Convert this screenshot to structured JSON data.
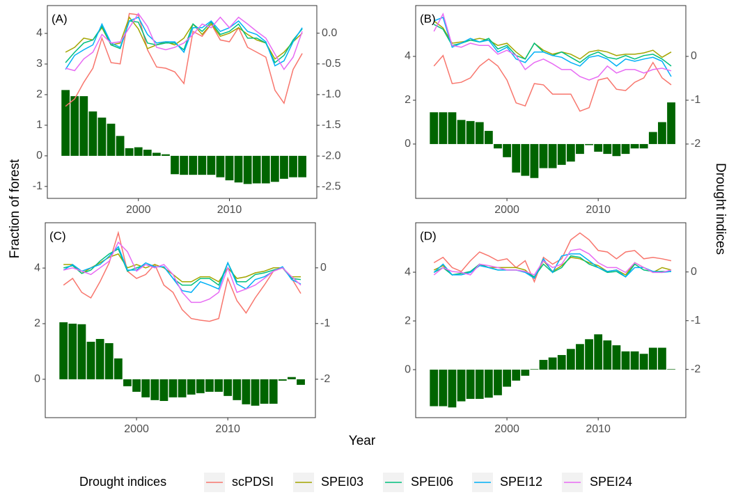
{
  "xlabel": "Year",
  "ylabel": "Fraction of forest",
  "y2label": "Drought indices",
  "legend": {
    "title": "Drought indices",
    "position": "bottom",
    "entries": [
      {
        "name": "scPDSI",
        "color": "#F8766D"
      },
      {
        "name": "SPEI03",
        "color": "#A3A500"
      },
      {
        "name": "SPEI06",
        "color": "#00BF7D"
      },
      {
        "name": "SPEI12",
        "color": "#00B0F6"
      },
      {
        "name": "SPEI24",
        "color": "#E76BF3"
      }
    ]
  },
  "chart_data": [
    {
      "type": "combo",
      "label": "(A)",
      "x": [
        1992,
        1993,
        1994,
        1995,
        1996,
        1997,
        1998,
        1999,
        2000,
        2001,
        2002,
        2003,
        2004,
        2005,
        2006,
        2007,
        2008,
        2009,
        2010,
        2011,
        2012,
        2013,
        2014,
        2015,
        2016,
        2017,
        2018
      ],
      "values": [
        2.15,
        1.95,
        1.95,
        1.45,
        1.25,
        1.05,
        0.65,
        0.25,
        0.28,
        0.2,
        0.1,
        0.05,
        -0.6,
        -0.62,
        -0.62,
        -0.62,
        -0.62,
        -0.7,
        -0.8,
        -0.87,
        -0.92,
        -0.9,
        -0.9,
        -0.85,
        -0.75,
        -0.7,
        -0.7
      ],
      "color": "#006400",
      "series": [
        {
          "axis": "y2",
          "values": [
            -1.19,
            -1.07,
            -0.8,
            -0.57,
            -0.08,
            -0.48,
            -0.5,
            0.32,
            0.3,
            -0.27,
            -0.55,
            -0.57,
            -0.63,
            -0.82,
            0.03,
            -0.05,
            0.15,
            -0.11,
            -0.14,
            0.09,
            -0.23,
            -0.31,
            -0.39,
            -0.93,
            -1.14,
            -0.59,
            -0.33
          ]
        },
        {
          "axis": "y2",
          "values": [
            -0.31,
            -0.23,
            -0.08,
            -0.11,
            0.09,
            -0.19,
            -0.16,
            0.26,
            0.07,
            -0.25,
            -0.19,
            -0.14,
            -0.19,
            -0.08,
            0.15,
            -0.02,
            0.15,
            -0.05,
            0,
            0.09,
            -0.02,
            -0.11,
            -0.16,
            -0.42,
            -0.31,
            -0.14,
            0
          ]
        },
        {
          "axis": "y2",
          "values": [
            -0.48,
            -0.31,
            -0.16,
            -0.11,
            0.11,
            -0.19,
            -0.25,
            0.2,
            0.18,
            -0.16,
            -0.19,
            -0.16,
            -0.16,
            -0.27,
            0.15,
            0.03,
            0.18,
            -0.02,
            0.03,
            0.15,
            -0.08,
            -0.08,
            -0.16,
            -0.48,
            -0.36,
            -0.11,
            0.07
          ]
        },
        {
          "axis": "y2",
          "values": [
            -0.59,
            -0.36,
            -0.27,
            -0.19,
            0.15,
            -0.16,
            -0.23,
            0.2,
            0.26,
            -0.02,
            -0.16,
            -0.14,
            -0.14,
            -0.31,
            0.09,
            0.09,
            0.2,
            0.03,
            0.09,
            0.2,
            0.03,
            -0.02,
            -0.14,
            -0.53,
            -0.45,
            -0.14,
            0.09
          ]
        },
        {
          "axis": "y2",
          "values": [
            -0.57,
            -0.61,
            -0.42,
            -0.31,
            -0.02,
            -0.16,
            -0.14,
            0.09,
            0.32,
            0.11,
            -0.23,
            -0.27,
            -0.23,
            -0.16,
            -0.02,
            0.15,
            0.09,
            0.26,
            0.09,
            0.26,
            0.15,
            0.03,
            -0.08,
            -0.34,
            -0.59,
            -0.39,
            0.03
          ]
        }
      ],
      "xlim": [
        1990,
        2019.6
      ],
      "xticks": [
        2000,
        2010
      ],
      "ylim": [
        -1.39,
        4.91
      ],
      "yticks": [
        -1,
        0,
        1,
        2,
        3,
        4
      ],
      "y2lim": [
        -2.69,
        0.45
      ],
      "y2ticks": [
        {
          "value": -2.5,
          "label": "-2.5"
        },
        {
          "value": -2,
          "label": "-2.0"
        },
        {
          "value": -1.5,
          "label": "-1.5"
        },
        {
          "value": -1,
          "label": "-1.0"
        },
        {
          "value": -0.5,
          "label": "-0.5"
        },
        {
          "value": 0,
          "label": "0.0"
        }
      ]
    },
    {
      "type": "combo",
      "label": "(B)",
      "x": [
        1992,
        1993,
        1994,
        1995,
        1996,
        1997,
        1998,
        1999,
        2000,
        2001,
        2002,
        2003,
        2004,
        2005,
        2006,
        2007,
        2008,
        2009,
        2010,
        2011,
        2012,
        2013,
        2014,
        2015,
        2016,
        2017,
        2018
      ],
      "values": [
        1.45,
        1.45,
        1.45,
        1.1,
        1.05,
        1.0,
        0.6,
        -0.2,
        -0.6,
        -1.3,
        -1.45,
        -1.55,
        -1.1,
        -1.1,
        -0.95,
        -0.8,
        -0.45,
        -0.05,
        -0.35,
        -0.45,
        -0.55,
        -0.45,
        -0.2,
        -0.2,
        0.55,
        1.0,
        1.9
      ],
      "color": "#006400",
      "series": [
        {
          "axis": "y2",
          "values": [
            -0.22,
            0.02,
            -0.62,
            -0.59,
            -0.49,
            -0.22,
            -0.06,
            -0.22,
            -0.54,
            -1.06,
            -1.13,
            -0.62,
            -0.65,
            -0.86,
            -0.86,
            -0.86,
            -1.25,
            -1.17,
            -0.54,
            -0.49,
            -0.75,
            -0.78,
            -0.59,
            -0.49,
            -0.14,
            -0.49,
            -0.65
          ]
        },
        {
          "axis": "y2",
          "values": [
            0.81,
            0.65,
            0.3,
            0.33,
            0.37,
            0.41,
            0.37,
            0.25,
            0.3,
            0.1,
            -0.06,
            0.3,
            0.14,
            0.05,
            0.1,
            0.05,
            -0.06,
            0.1,
            0.14,
            0.1,
            0.02,
            0.05,
            0.05,
            0.08,
            0.14,
            -0.02,
            0.1
          ]
        },
        {
          "axis": "y2",
          "values": [
            0.73,
            0.62,
            0.25,
            0.3,
            0.37,
            0.33,
            0.41,
            0.17,
            0.25,
            0.02,
            -0.06,
            0.3,
            0.1,
            0.02,
            0.1,
            -0.02,
            -0.14,
            0.02,
            0.1,
            -0.02,
            -0.06,
            0.02,
            -0.06,
            0.02,
            0.05,
            -0.06,
            -0.22
          ]
        },
        {
          "axis": "y2",
          "values": [
            0.81,
            0.89,
            0.21,
            0.3,
            0.41,
            0.33,
            0.37,
            0.1,
            0.21,
            -0.06,
            -0.14,
            0.1,
            0.1,
            0.02,
            -0.02,
            -0.14,
            -0.22,
            -0.02,
            0.02,
            -0.06,
            -0.22,
            -0.06,
            -0.11,
            -0.06,
            -0.02,
            -0.11,
            -0.46
          ]
        },
        {
          "axis": "y2",
          "values": [
            0.57,
            0.97,
            0.25,
            0.21,
            0.3,
            0.25,
            0.25,
            0.05,
            0.14,
            0.02,
            -0.3,
            -0.14,
            -0.06,
            -0.17,
            -0.3,
            -0.3,
            -0.46,
            -0.54,
            -0.46,
            -0.22,
            -0.38,
            -0.3,
            -0.3,
            -0.38,
            -0.3,
            -0.27,
            -0.33
          ]
        }
      ],
      "xlim": [
        1990,
        2019.6
      ],
      "xticks": [
        2000,
        2010
      ],
      "ylim": [
        -2.48,
        6.32
      ],
      "yticks": [
        0,
        2,
        4
      ],
      "y2lim": [
        -3.24,
        1.16
      ],
      "y2ticks": [
        -2,
        -1,
        0
      ]
    },
    {
      "type": "combo",
      "label": "(C)",
      "x": [
        1992,
        1993,
        1994,
        1995,
        1996,
        1997,
        1998,
        1999,
        2000,
        2001,
        2002,
        2003,
        2004,
        2005,
        2006,
        2007,
        2008,
        2009,
        2010,
        2011,
        2012,
        2013,
        2014,
        2015,
        2016,
        2017,
        2018
      ],
      "values": [
        2.05,
        2.0,
        1.98,
        1.35,
        1.45,
        1.3,
        0.75,
        -0.25,
        -0.45,
        -0.65,
        -0.75,
        -0.78,
        -0.65,
        -0.65,
        -0.55,
        -0.5,
        -0.45,
        -0.45,
        -0.6,
        -0.75,
        -0.9,
        -0.95,
        -0.88,
        -0.88,
        -0.05,
        0.08,
        -0.2
      ],
      "color": "#006400",
      "series": [
        {
          "axis": "y2",
          "values": [
            -0.31,
            -0.19,
            -0.44,
            -0.54,
            -0.25,
            0.09,
            0.63,
            -0.06,
            -0.19,
            -0.12,
            0.06,
            -0.31,
            -0.44,
            -0.75,
            -0.91,
            -0.94,
            -0.96,
            -0.91,
            -0.19,
            -0.59,
            -0.81,
            -0.54,
            -0.31,
            -0.06,
            0,
            -0.19,
            -0.46
          ]
        },
        {
          "axis": "y2",
          "values": [
            0.06,
            0.06,
            -0.1,
            0,
            0.09,
            0.19,
            0.25,
            0,
            0.06,
            0,
            0.06,
            0,
            -0.12,
            -0.25,
            -0.25,
            -0.16,
            -0.16,
            -0.25,
            0,
            -0.19,
            -0.16,
            -0.09,
            -0.06,
            0,
            0,
            -0.16,
            -0.16
          ]
        },
        {
          "axis": "y2",
          "values": [
            0,
            0.04,
            -0.1,
            -0.04,
            0.12,
            0.25,
            0.34,
            -0.06,
            0,
            0.06,
            0.02,
            0.02,
            -0.19,
            -0.31,
            -0.31,
            -0.19,
            -0.19,
            -0.31,
            0.09,
            -0.25,
            -0.25,
            -0.12,
            -0.09,
            -0.04,
            0,
            -0.19,
            -0.21
          ]
        },
        {
          "axis": "y2",
          "values": [
            -0.04,
            0.06,
            -0.06,
            0,
            0.06,
            0.21,
            0.38,
            -0.04,
            -0.04,
            0.09,
            0.02,
            0.02,
            -0.19,
            -0.41,
            -0.44,
            -0.25,
            -0.31,
            -0.38,
            0.09,
            -0.29,
            -0.38,
            -0.21,
            -0.16,
            -0.06,
            0.02,
            -0.21,
            -0.29
          ]
        },
        {
          "axis": "y2",
          "values": [
            -0.04,
            0,
            -0.06,
            -0.12,
            0,
            0.12,
            0.46,
            0.29,
            -0.06,
            0.06,
            0,
            0.06,
            -0.12,
            -0.44,
            -0.62,
            -0.62,
            -0.56,
            -0.44,
            0,
            -0.44,
            -0.38,
            -0.31,
            -0.19,
            -0.06,
            0,
            -0.16,
            -0.31
          ]
        }
      ],
      "xlim": [
        1990,
        2019.6
      ],
      "xticks": [
        2000,
        2010
      ],
      "ylim": [
        -1.38,
        5.63
      ],
      "yticks": [
        0,
        2,
        4
      ],
      "y2lim": [
        -2.69,
        0.81
      ],
      "y2ticks": [
        -2,
        -1,
        0
      ]
    },
    {
      "type": "combo",
      "label": "(D)",
      "x": [
        1992,
        1993,
        1994,
        1995,
        1996,
        1997,
        1998,
        1999,
        2000,
        2001,
        2002,
        2003,
        2004,
        2005,
        2006,
        2007,
        2008,
        2009,
        2010,
        2011,
        2012,
        2013,
        2014,
        2015,
        2016,
        2017,
        2018
      ],
      "values": [
        -1.5,
        -1.5,
        -1.55,
        -1.3,
        -1.2,
        -1.2,
        -1.15,
        -1.05,
        -0.7,
        -0.45,
        -0.25,
        0.02,
        0.4,
        0.5,
        0.6,
        0.85,
        1.05,
        1.25,
        1.45,
        1.2,
        1.0,
        0.75,
        0.75,
        0.65,
        0.9,
        0.9,
        0.02
      ],
      "color": "#006400",
      "series": [
        {
          "axis": "y2",
          "values": [
            0.19,
            0.3,
            0.09,
            0.01,
            0.23,
            0.41,
            0.33,
            0.23,
            0.27,
            0.09,
            0.23,
            -0.2,
            0.3,
            0.16,
            0.27,
            0.66,
            0.8,
            0.66,
            0.44,
            0.41,
            0.27,
            0.41,
            0.44,
            0.27,
            0.3,
            0.27,
            0.23
          ]
        },
        {
          "axis": "y2",
          "values": [
            0.04,
            0.13,
            -0.06,
            -0.03,
            -0.01,
            0.16,
            0.09,
            0.09,
            0.09,
            0.09,
            0.04,
            -0.13,
            0.23,
            0.01,
            0.13,
            0.3,
            0.27,
            0.19,
            0.13,
            0.01,
            0.04,
            -0.06,
            0.19,
            0.09,
            -0.01,
            0.09,
            0.04
          ]
        },
        {
          "axis": "y2",
          "values": [
            -0.01,
            0.09,
            -0.06,
            -0.03,
            0.01,
            0.16,
            0.09,
            0.04,
            0.04,
            0.04,
            0.01,
            -0.1,
            0.16,
            -0.01,
            0.09,
            0.33,
            0.3,
            0.16,
            0.09,
            -0.01,
            0.01,
            -0.1,
            0.16,
            0.04,
            0.01,
            0.01,
            0.01
          ]
        },
        {
          "axis": "y2",
          "values": [
            -0.01,
            0.16,
            -0.06,
            -0.06,
            -0.01,
            0.13,
            0.09,
            0.04,
            0.04,
            0.04,
            -0.01,
            -0.13,
            0.27,
            -0.01,
            0.33,
            0.37,
            0.37,
            0.23,
            0.09,
            0.01,
            0.04,
            -0.1,
            0.09,
            0.09,
            0.01,
            -0.01,
            0.01
          ]
        },
        {
          "axis": "y2",
          "values": [
            -0.06,
            0.09,
            0.01,
            -0.01,
            -0.06,
            0.16,
            0.13,
            0.09,
            0.04,
            0.04,
            0.01,
            -0.06,
            0.23,
            0.09,
            0.16,
            0.44,
            0.47,
            0.37,
            0.19,
            0.09,
            0.09,
            -0.01,
            0.19,
            0.09,
            -0.01,
            -0.01,
            0.04
          ]
        }
      ],
      "xlim": [
        1990,
        2019.6
      ],
      "xticks": [
        2000,
        2010
      ],
      "ylim": [
        -1.97,
        6.03
      ],
      "yticks": [
        0,
        2,
        4
      ],
      "y2lim": [
        -2.99,
        1.01
      ],
      "y2ticks": [
        -2,
        -1,
        0
      ]
    }
  ]
}
